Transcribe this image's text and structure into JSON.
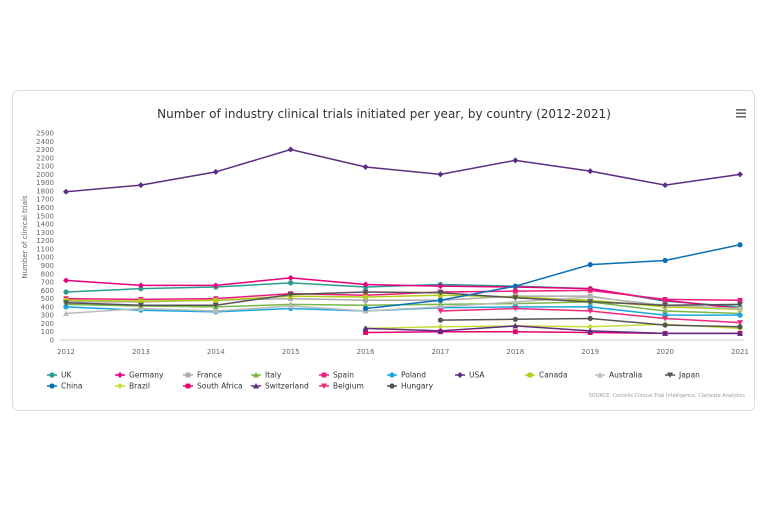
{
  "chart_data": {
    "type": "line",
    "title": "Number of industry clinical trials initiated per year, by country (2012-2021)",
    "ylabel": "Number of clinical trials",
    "xlabel": "",
    "x": [
      2012,
      2013,
      2014,
      2015,
      2016,
      2017,
      2018,
      2019,
      2020,
      2021
    ],
    "ylim": [
      0,
      2500
    ],
    "yticks": [
      0,
      100,
      200,
      300,
      400,
      500,
      600,
      700,
      800,
      900,
      1000,
      1100,
      1200,
      1300,
      1400,
      1500,
      1600,
      1700,
      1800,
      1900,
      2000,
      2100,
      2200,
      2300,
      2400,
      2500
    ],
    "grid": false,
    "legend": "bottom",
    "source": "SOURCE: Cortellis Clinical Trial Intelligence, Clarivate Analytics",
    "series": [
      {
        "name": "UK",
        "color": "#2a9d8f",
        "marker": "circle",
        "values": [
          580,
          620,
          640,
          690,
          640,
          670,
          650,
          620,
          470,
          400
        ]
      },
      {
        "name": "Germany",
        "color": "#e6007e",
        "marker": "diamond",
        "values": [
          720,
          660,
          660,
          750,
          670,
          650,
          640,
          620,
          480,
          380
        ]
      },
      {
        "name": "France",
        "color": "#aaaaaa",
        "marker": "square",
        "values": [
          460,
          460,
          480,
          500,
          480,
          480,
          530,
          530,
          400,
          380
        ]
      },
      {
        "name": "Italy",
        "color": "#7ab648",
        "marker": "triangle",
        "values": [
          430,
          410,
          400,
          430,
          420,
          430,
          440,
          460,
          350,
          320
        ]
      },
      {
        "name": "Spain",
        "color": "#ec1c7c",
        "marker": "square",
        "values": [
          500,
          490,
          500,
          560,
          540,
          580,
          590,
          600,
          490,
          480
        ]
      },
      {
        "name": "Poland",
        "color": "#1aa7e0",
        "marker": "circle",
        "values": [
          400,
          360,
          340,
          380,
          350,
          390,
          400,
          400,
          300,
          300
        ]
      },
      {
        "name": "USA",
        "color": "#5c2d82",
        "marker": "diamond",
        "values": [
          1790,
          1870,
          2030,
          2300,
          2090,
          2000,
          2170,
          2040,
          1870,
          2000
        ]
      },
      {
        "name": "Canada",
        "color": "#b5cc18",
        "marker": "square",
        "values": [
          480,
          470,
          480,
          530,
          520,
          540,
          520,
          480,
          400,
          370
        ]
      },
      {
        "name": "Australia",
        "color": "#bbbbbb",
        "marker": "triangle",
        "values": [
          320,
          380,
          350,
          410,
          350,
          400,
          460,
          520,
          420,
          380
        ]
      },
      {
        "name": "Japan",
        "color": "#555555",
        "marker": "down",
        "values": [
          450,
          420,
          420,
          550,
          580,
          570,
          510,
          460,
          420,
          430
        ]
      },
      {
        "name": "China",
        "color": "#0a6fb5",
        "marker": "circle",
        "values": [
          null,
          null,
          null,
          null,
          380,
          480,
          650,
          910,
          960,
          1150
        ]
      },
      {
        "name": "Brazil",
        "color": "#c8dc3c",
        "marker": "diamond",
        "values": [
          null,
          null,
          null,
          null,
          140,
          160,
          170,
          160,
          190,
          140
        ]
      },
      {
        "name": "South Africa",
        "color": "#e5006d",
        "marker": "square",
        "values": [
          null,
          null,
          null,
          null,
          90,
          100,
          100,
          90,
          80,
          80
        ]
      },
      {
        "name": "Switzerland",
        "color": "#5c2d82",
        "marker": "triangle",
        "values": [
          null,
          null,
          null,
          null,
          140,
          110,
          170,
          110,
          80,
          80
        ]
      },
      {
        "name": "Belgium",
        "color": "#ee2a7b",
        "marker": "down",
        "values": [
          null,
          null,
          null,
          null,
          null,
          350,
          380,
          350,
          260,
          210
        ]
      },
      {
        "name": "Hungary",
        "color": "#555555",
        "marker": "circle",
        "values": [
          null,
          null,
          null,
          null,
          null,
          240,
          250,
          260,
          180,
          160
        ]
      }
    ]
  }
}
